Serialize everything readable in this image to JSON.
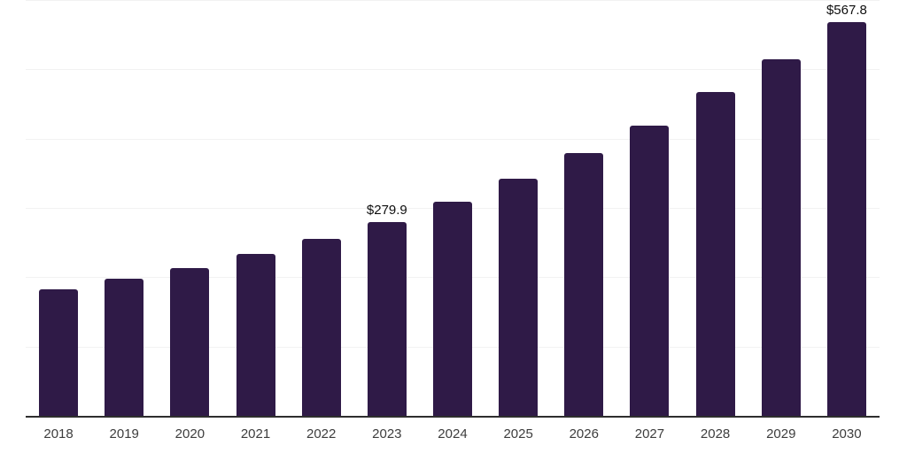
{
  "chart": {
    "bar_color": "#2f1a47",
    "gridline_color": "#f2f2f2",
    "axis_line_color": "#2e2e2e",
    "tick_label_color": "#3d3d3d",
    "data_label_color": "#0e0e0e",
    "background_color": "#ffffff"
  },
  "chart_data": {
    "type": "bar",
    "categories": [
      "2018",
      "2019",
      "2020",
      "2021",
      "2022",
      "2023",
      "2024",
      "2025",
      "2026",
      "2027",
      "2028",
      "2029",
      "2030"
    ],
    "values": [
      183.2,
      198.0,
      213.5,
      233.0,
      255.3,
      279.9,
      309.5,
      342.6,
      378.8,
      418.3,
      467.5,
      515.0,
      567.8
    ],
    "data_labels": [
      {
        "category": "2023",
        "index": 5,
        "text": "$279.9"
      },
      {
        "category": "2030",
        "index": 12,
        "text": "$567.8"
      }
    ],
    "ylim": [
      0,
      600
    ],
    "grid_step": 100,
    "grid": "on",
    "legend": "none",
    "y_tick_labels_visible": false
  }
}
